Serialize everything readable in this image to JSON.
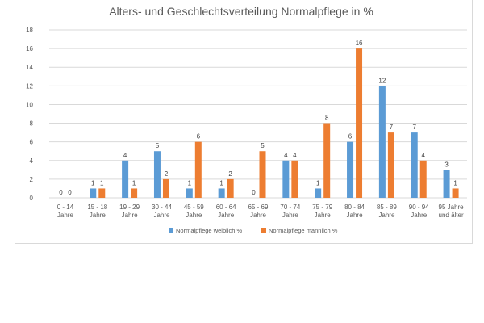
{
  "chart_data": {
    "type": "bar",
    "title": "Alters- und Geschlechtsverteilung Normalpflege in %",
    "categories": [
      [
        "0 - 14",
        "Jahre"
      ],
      [
        "15 - 18",
        "Jahre"
      ],
      [
        "19 - 29",
        "Jahre"
      ],
      [
        "30 - 44",
        "Jahre"
      ],
      [
        "45 - 59",
        "Jahre"
      ],
      [
        "60 - 64",
        "Jahre"
      ],
      [
        "65 - 69",
        "Jahre"
      ],
      [
        "70 - 74",
        "Jahre"
      ],
      [
        "75 - 79",
        "Jahre"
      ],
      [
        "80 - 84",
        "Jahre"
      ],
      [
        "85 - 89",
        "Jahre"
      ],
      [
        "90 - 94",
        "Jahre"
      ],
      [
        "95 Jahre",
        "und älter"
      ]
    ],
    "series": [
      {
        "name": "Normalpflege weiblich %",
        "color": "#5B9BD5",
        "values": [
          0,
          1,
          4,
          5,
          1,
          1,
          0,
          4,
          1,
          6,
          12,
          7,
          3
        ]
      },
      {
        "name": "Normalpflege männlich %",
        "color": "#ED7D31",
        "values": [
          0,
          1,
          1,
          2,
          6,
          2,
          5,
          4,
          8,
          16,
          7,
          4,
          1
        ]
      }
    ],
    "ylim": [
      0,
      18
    ],
    "yticks": [
      0,
      2,
      4,
      6,
      8,
      10,
      12,
      14,
      16,
      18
    ],
    "grid": true,
    "legend": "bottom"
  }
}
